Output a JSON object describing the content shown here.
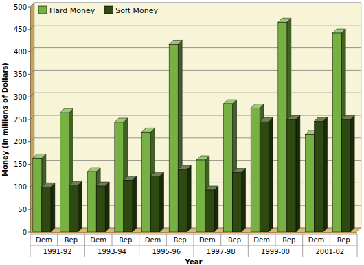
{
  "chart_data": {
    "type": "bar",
    "x_label": "Year",
    "y_label": "Money (in millions of Dollars)",
    "categories": [
      "Dem",
      "Rep",
      "Dem",
      "Rep",
      "Dem",
      "Rep",
      "Dem",
      "Rep",
      "Dem",
      "Rep",
      "Dem",
      "Rep"
    ],
    "category_groups": [
      "1991-92",
      "1993-94",
      "1995-96",
      "1997-98",
      "1999-00",
      "2001-02"
    ],
    "series": [
      {
        "name": "Hard Money",
        "color": "#77b144",
        "values": [
          164,
          265,
          134,
          244,
          222,
          417,
          160,
          285,
          275,
          466,
          217,
          442
        ]
      },
      {
        "name": "Soft Money",
        "color": "#2e4a10",
        "values": [
          100,
          104,
          102,
          115,
          124,
          139,
          93,
          132,
          245,
          250,
          246,
          250
        ]
      }
    ],
    "ylim": [
      0,
      500
    ],
    "yticks": [
      0,
      50,
      100,
      150,
      200,
      250,
      300,
      350,
      400,
      450,
      500
    ],
    "grid": true,
    "legend": "upper left"
  }
}
